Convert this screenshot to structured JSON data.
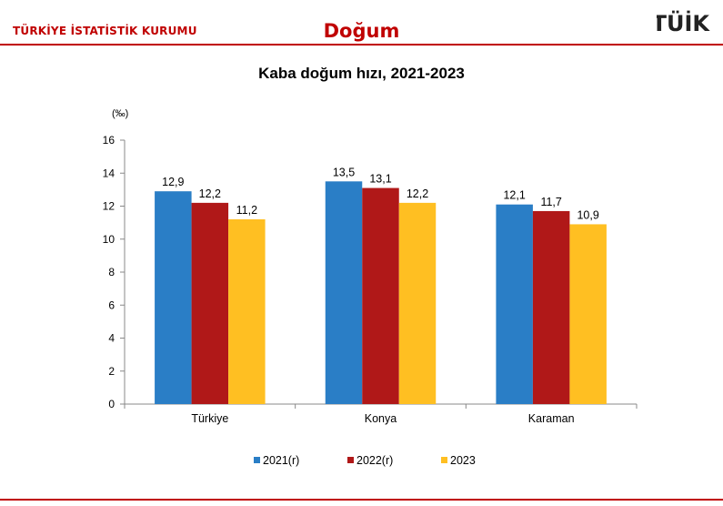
{
  "header": {
    "org_name": "TÜRKİYE İSTATİSTİK KURUMU",
    "title": "Doğum",
    "logo_text": "TÜİK",
    "accent_color": "#c00000"
  },
  "chart_data": {
    "type": "bar",
    "title": "Kaba doğum hızı, 2021-2023",
    "ylabel": "(‰)",
    "xlabel": "",
    "ylim": [
      0,
      16
    ],
    "yticks": [
      0,
      2,
      4,
      6,
      8,
      10,
      12,
      14,
      16
    ],
    "grid": false,
    "legend_position": "bottom",
    "categories": [
      "Türkiye",
      "Konya",
      "Karaman"
    ],
    "series": [
      {
        "name": "2021(r)",
        "color": "#2a7ec6",
        "values": [
          12.9,
          13.5,
          12.1
        ],
        "labels": [
          "12,9",
          "13,5",
          "12,1"
        ]
      },
      {
        "name": "2022(r)",
        "color": "#b01818",
        "values": [
          12.2,
          13.1,
          11.7
        ],
        "labels": [
          "12,2",
          "13,1",
          "11,7"
        ]
      },
      {
        "name": "2023",
        "color": "#ffbf22",
        "values": [
          11.2,
          12.2,
          10.9
        ],
        "labels": [
          "11,2",
          "12,2",
          "10,9"
        ]
      }
    ]
  }
}
